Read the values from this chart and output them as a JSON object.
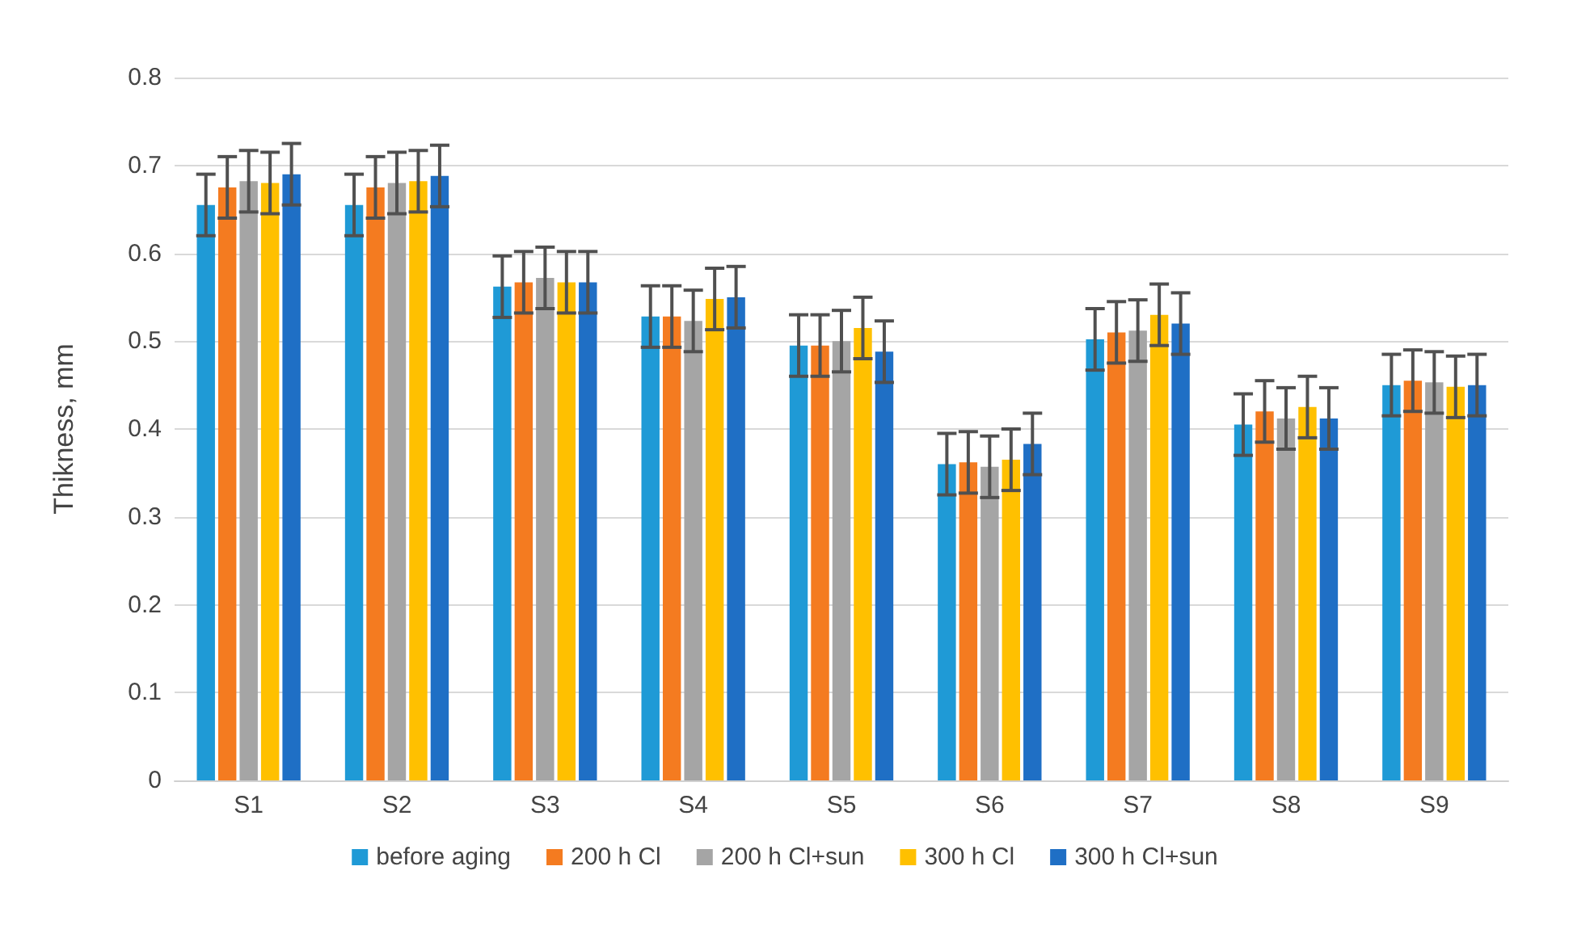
{
  "chart_data": {
    "type": "bar",
    "ylabel": "Thikness, mm",
    "categories": [
      "S1",
      "S2",
      "S3",
      "S4",
      "S5",
      "S6",
      "S7",
      "S8",
      "S9"
    ],
    "series": [
      {
        "name": "before aging",
        "color": "#1f9ad6",
        "values": [
          0.655,
          0.655,
          0.562,
          0.528,
          0.495,
          0.36,
          0.502,
          0.405,
          0.45
        ],
        "errors": [
          0.035,
          0.035,
          0.035,
          0.035,
          0.035,
          0.035,
          0.035,
          0.035,
          0.035
        ]
      },
      {
        "name": "200 h Cl",
        "color": "#f47b20",
        "values": [
          0.675,
          0.675,
          0.567,
          0.528,
          0.495,
          0.362,
          0.51,
          0.42,
          0.455
        ],
        "errors": [
          0.035,
          0.035,
          0.035,
          0.035,
          0.035,
          0.035,
          0.035,
          0.035,
          0.035
        ]
      },
      {
        "name": "200 h Cl+sun",
        "color": "#a5a5a5",
        "values": [
          0.682,
          0.68,
          0.572,
          0.523,
          0.5,
          0.357,
          0.512,
          0.412,
          0.453
        ],
        "errors": [
          0.035,
          0.035,
          0.035,
          0.035,
          0.035,
          0.035,
          0.035,
          0.035,
          0.035
        ]
      },
      {
        "name": "300 h Cl",
        "color": "#ffc000",
        "values": [
          0.68,
          0.682,
          0.567,
          0.548,
          0.515,
          0.365,
          0.53,
          0.425,
          0.448
        ],
        "errors": [
          0.035,
          0.035,
          0.035,
          0.035,
          0.035,
          0.035,
          0.035,
          0.035,
          0.035
        ]
      },
      {
        "name": "300 h Cl+sun",
        "color": "#1f6fc5",
        "values": [
          0.69,
          0.688,
          0.567,
          0.55,
          0.488,
          0.383,
          0.52,
          0.412,
          0.45
        ],
        "errors": [
          0.035,
          0.035,
          0.035,
          0.035,
          0.035,
          0.035,
          0.035,
          0.035,
          0.035
        ]
      }
    ],
    "ylim": [
      0,
      0.8
    ],
    "yticks": [
      0,
      0.1,
      0.2,
      0.3,
      0.4,
      0.5,
      0.6,
      0.7,
      0.8
    ],
    "grid": "y",
    "legend": "bottom"
  }
}
